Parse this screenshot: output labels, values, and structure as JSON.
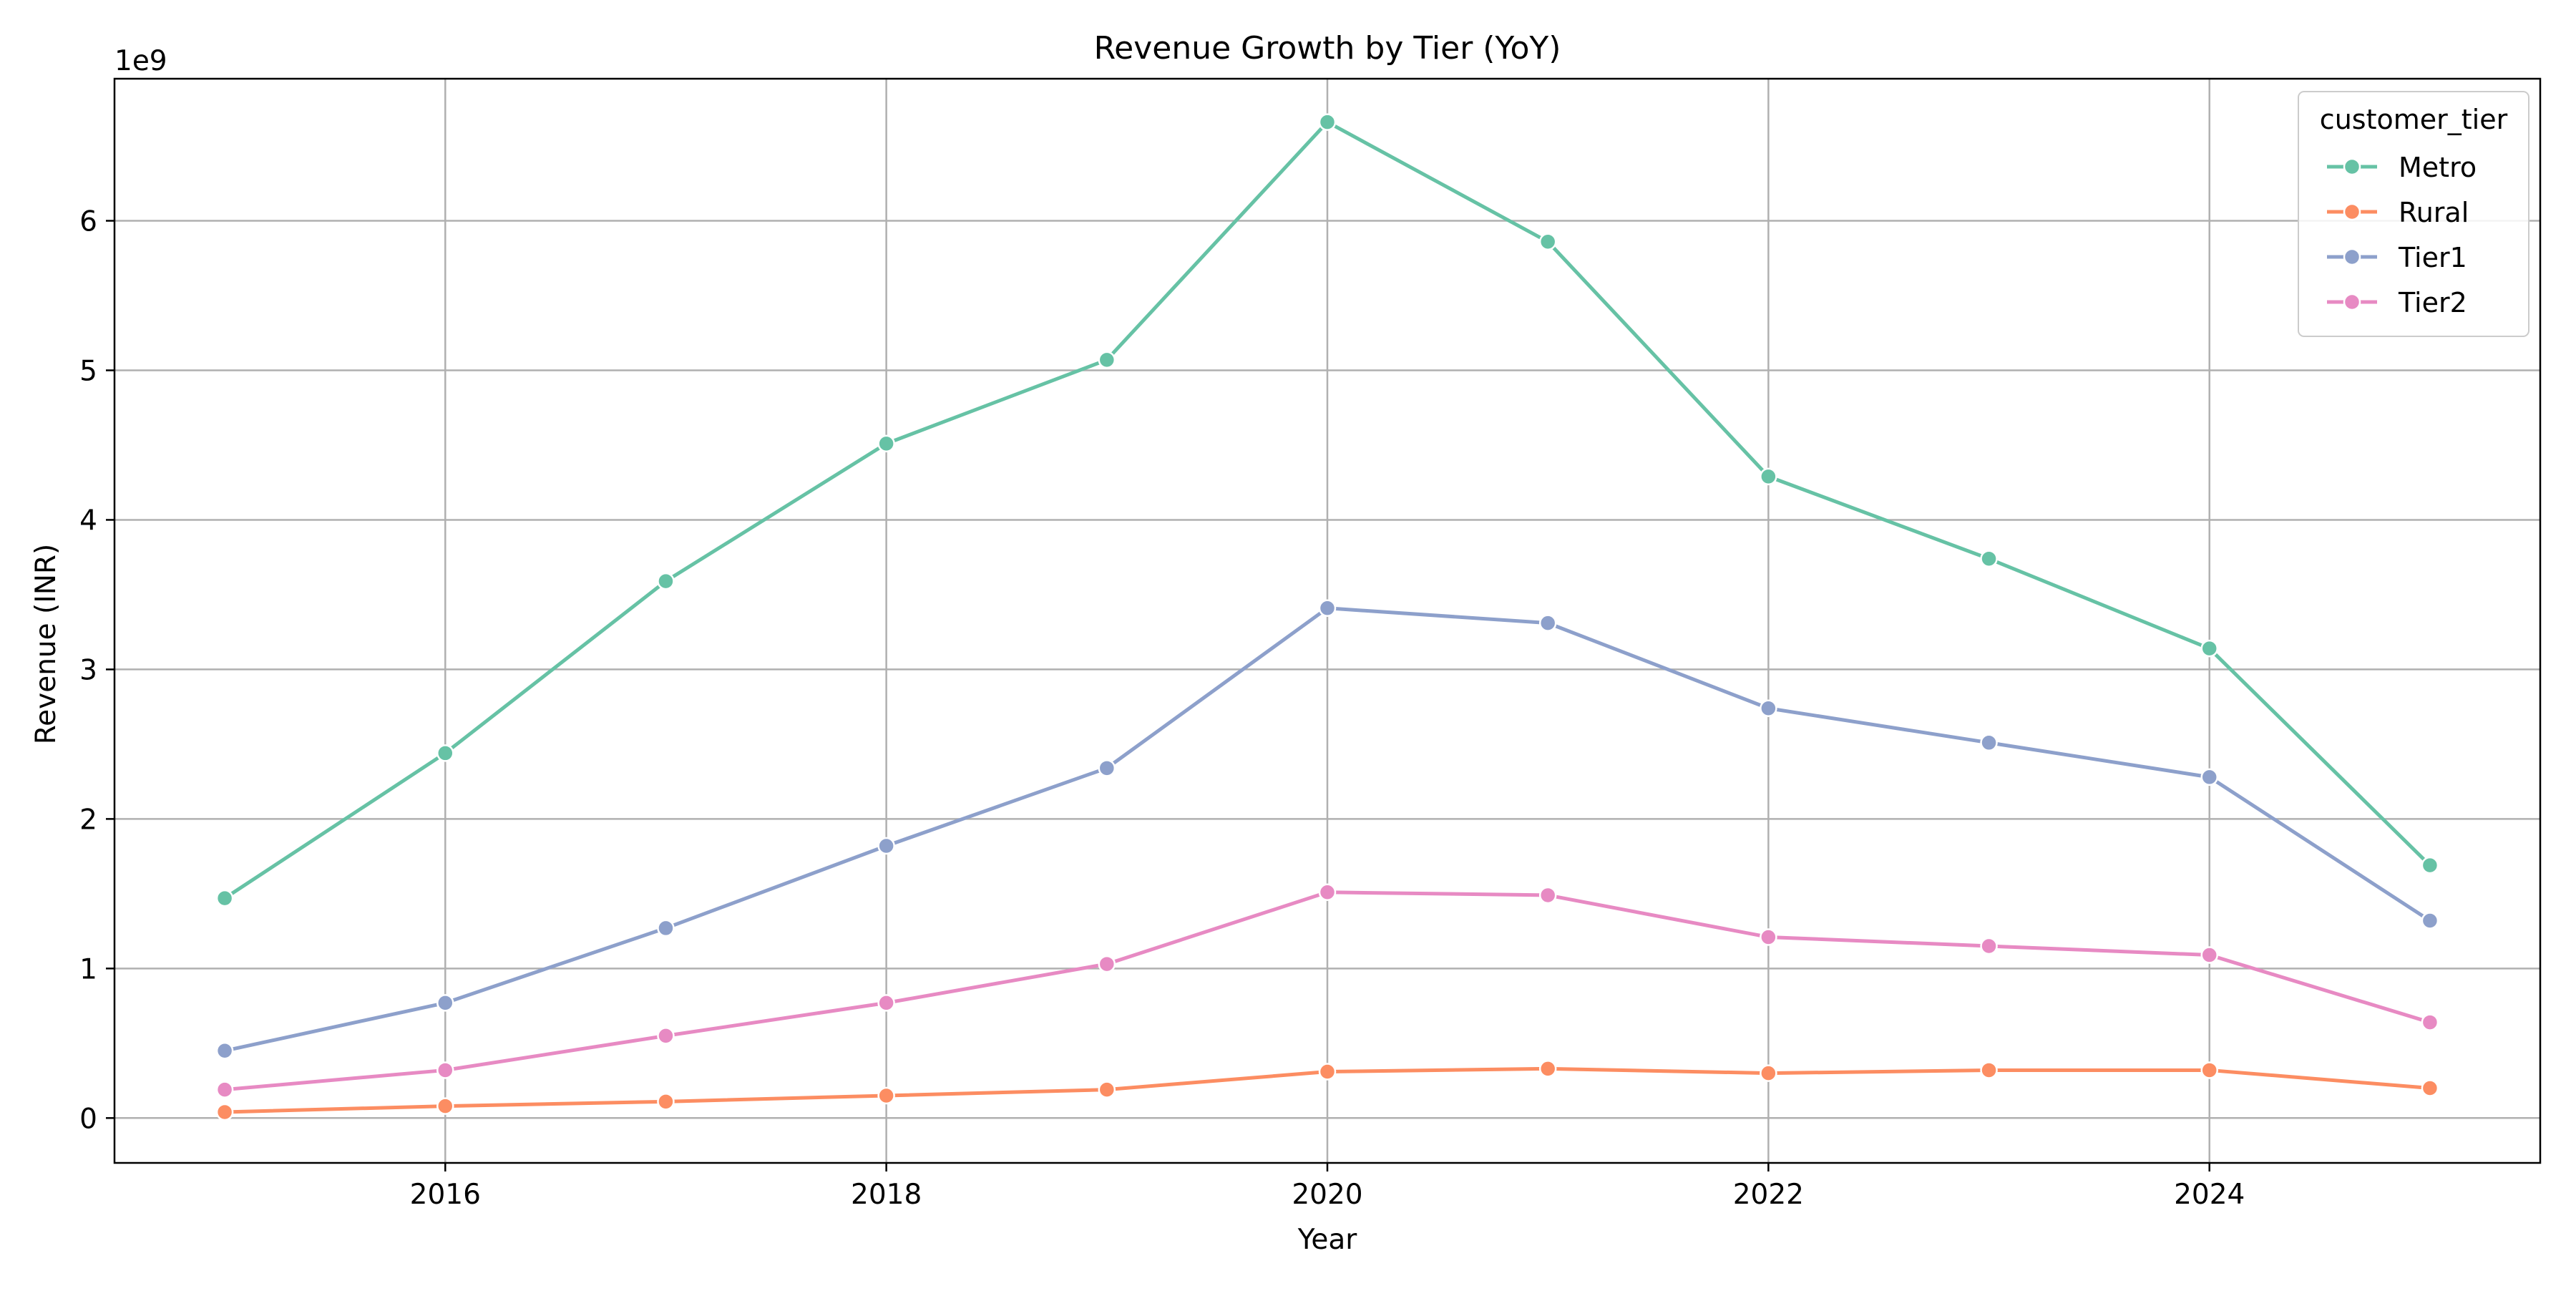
{
  "chart_data": {
    "type": "line",
    "title": "Revenue Growth by Tier (YoY)",
    "xlabel": "Year",
    "ylabel": "Revenue (INR)",
    "y_offset_label": "1e9",
    "x": [
      2015,
      2016,
      2017,
      2018,
      2019,
      2020,
      2021,
      2022,
      2023,
      2024,
      2025
    ],
    "xlim": [
      2014.5,
      2025.5
    ],
    "ylim": [
      -0.3,
      6.95
    ],
    "x_ticks": [
      2016,
      2018,
      2020,
      2022,
      2024
    ],
    "x_tick_labels": [
      "2016",
      "2018",
      "2020",
      "2022",
      "2024"
    ],
    "y_ticks": [
      0,
      1,
      2,
      3,
      4,
      5,
      6
    ],
    "y_tick_labels": [
      "0",
      "1",
      "2",
      "3",
      "4",
      "5",
      "6"
    ],
    "y_unit_multiplier": 1000000000,
    "grid": true,
    "legend": {
      "title": "customer_tier",
      "position": "top-right"
    },
    "series": [
      {
        "name": "Metro",
        "color": "#66c2a5",
        "values": [
          1.47,
          2.44,
          3.59,
          4.51,
          5.07,
          6.66,
          5.86,
          4.29,
          3.74,
          3.14,
          1.69
        ]
      },
      {
        "name": "Rural",
        "color": "#fc8d62",
        "values": [
          0.04,
          0.08,
          0.11,
          0.15,
          0.19,
          0.31,
          0.33,
          0.3,
          0.32,
          0.32,
          0.2
        ]
      },
      {
        "name": "Tier1",
        "color": "#8da0cb",
        "values": [
          0.45,
          0.77,
          1.27,
          1.82,
          2.34,
          3.41,
          3.31,
          2.74,
          2.51,
          2.28,
          1.32
        ]
      },
      {
        "name": "Tier2",
        "color": "#e78ac3",
        "values": [
          0.19,
          0.32,
          0.55,
          0.77,
          1.03,
          1.51,
          1.49,
          1.21,
          1.15,
          1.09,
          0.64
        ]
      }
    ]
  }
}
